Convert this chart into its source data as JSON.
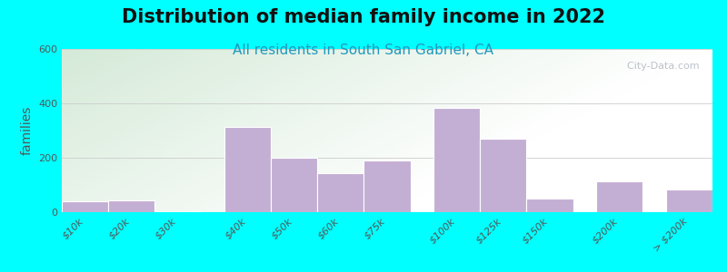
{
  "title": "Distribution of median family income in 2022",
  "subtitle": "All residents in South San Gabriel, CA",
  "ylabel": "families",
  "background_outer": "#00FFFF",
  "bar_color": "#c4afd4",
  "bar_edge_color": "#ffffff",
  "categories": [
    "$10k",
    "$20k",
    "$30k",
    "$40k",
    "$50k",
    "$60k",
    "$75k",
    "$100k",
    "$125k",
    "$150k",
    "$200k",
    "> $200k"
  ],
  "values": [
    40,
    45,
    5,
    315,
    200,
    145,
    190,
    385,
    270,
    50,
    115,
    85
  ],
  "ylim": [
    0,
    600
  ],
  "yticks": [
    0,
    200,
    400,
    600
  ],
  "watermark": "  City-Data.com",
  "title_fontsize": 15,
  "subtitle_fontsize": 11,
  "ylabel_fontsize": 10,
  "tick_fontsize": 8,
  "bg_color_topleft": "#d5ead8",
  "bg_color_topright": "#e8f4f0",
  "bg_color_bottom": "#f8fffe",
  "bar_groups": [
    [
      0,
      1,
      2
    ],
    [
      3,
      4,
      5,
      6
    ],
    [
      7,
      8,
      9
    ],
    [
      10
    ],
    [
      11
    ]
  ],
  "group_gaps": [
    0.3,
    0.3,
    0.3,
    0.3
  ]
}
